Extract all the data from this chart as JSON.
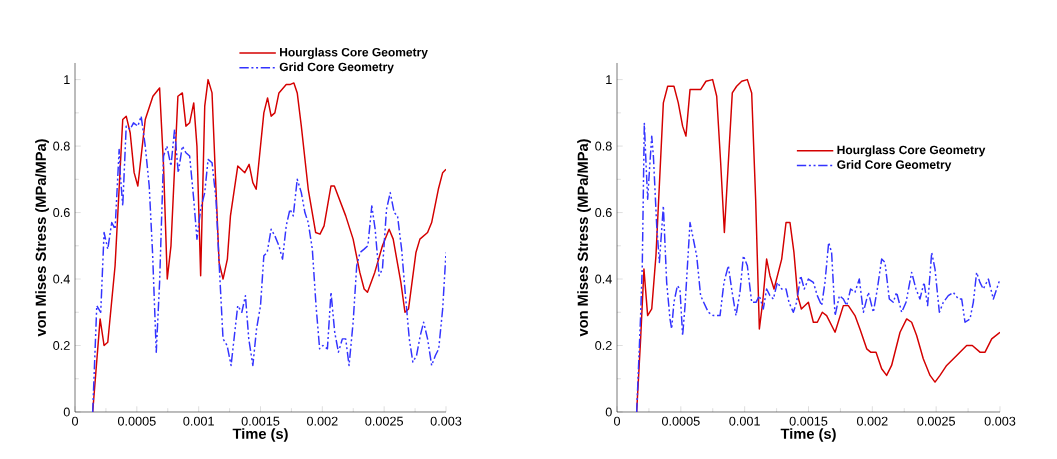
{
  "chart_data": [
    {
      "type": "line",
      "xlabel": "Time (s)",
      "ylabel": "von Mises Stress (MPa/MPa)",
      "xlim": [
        0,
        0.003
      ],
      "ylim": [
        0,
        1.05
      ],
      "xticks": [
        {
          "value": 0,
          "label": "0"
        },
        {
          "value": 0.0005,
          "label": "0.0005"
        },
        {
          "value": 0.001,
          "label": "0.001"
        },
        {
          "value": 0.0015,
          "label": "0.0015"
        },
        {
          "value": 0.002,
          "label": "0.002"
        },
        {
          "value": 0.0025,
          "label": "0.0025"
        },
        {
          "value": 0.003,
          "label": "0.003"
        }
      ],
      "yticks": [
        0,
        0.2,
        0.4,
        0.6,
        0.8,
        1
      ],
      "legend": "top right",
      "grid": false,
      "marker": "none",
      "series": [
        {
          "name": "Hourglass Core Geometry",
          "color": "#d40000",
          "line_style": "solid",
          "x": [
            0.000143,
            0.000203,
            0.000235,
            0.000265,
            0.000324,
            0.000386,
            0.000414,
            0.000446,
            0.000478,
            0.000508,
            0.000568,
            0.00063,
            0.000684,
            0.000716,
            0.000746,
            0.000776,
            0.000832,
            0.000868,
            0.000897,
            0.000927,
            0.00096,
            0.000986,
            0.001016,
            0.001049,
            0.001076,
            0.001108,
            0.00114,
            0.001165,
            0.001197,
            0.001232,
            0.001257,
            0.001316,
            0.001373,
            0.001408,
            0.001438,
            0.001465,
            0.001527,
            0.001557,
            0.001586,
            0.001616,
            0.001649,
            0.001708,
            0.001738,
            0.00177,
            0.001797,
            0.00183,
            0.001886,
            0.001946,
            0.001981,
            0.002014,
            0.00207,
            0.002097,
            0.002189,
            0.002249,
            0.002303,
            0.002338,
            0.002365,
            0.002424,
            0.002486,
            0.00254,
            0.002573,
            0.002635,
            0.002668,
            0.002697,
            0.002757,
            0.002789,
            0.002851,
            0.002884,
            0.002938,
            0.002973,
            0.003
          ],
          "values": [
            0,
            0.28,
            0.2,
            0.21,
            0.44,
            0.88,
            0.89,
            0.84,
            0.72,
            0.68,
            0.88,
            0.95,
            0.975,
            0.74,
            0.4,
            0.5,
            0.95,
            0.96,
            0.86,
            0.87,
            0.93,
            0.8,
            0.41,
            0.92,
            1.0,
            0.96,
            0.67,
            0.45,
            0.4,
            0.46,
            0.59,
            0.74,
            0.72,
            0.745,
            0.69,
            0.67,
            0.9,
            0.945,
            0.89,
            0.9,
            0.96,
            0.985,
            0.985,
            0.99,
            0.96,
            0.86,
            0.67,
            0.54,
            0.535,
            0.56,
            0.68,
            0.68,
            0.59,
            0.52,
            0.42,
            0.37,
            0.36,
            0.42,
            0.5,
            0.55,
            0.52,
            0.39,
            0.3,
            0.31,
            0.48,
            0.52,
            0.54,
            0.57,
            0.67,
            0.72,
            0.73
          ]
        },
        {
          "name": "Grid Core Geometry",
          "color": "#3333ff",
          "line_style": "dashdot",
          "x": [
            0.000143,
            0.000176,
            0.000208,
            0.000235,
            0.000265,
            0.000297,
            0.000324,
            0.000357,
            0.000365,
            0.000386,
            0.000414,
            0.000446,
            0.000473,
            0.000508,
            0.000535,
            0.000568,
            0.0006,
            0.000627,
            0.000657,
            0.000684,
            0.000716,
            0.000743,
            0.000776,
            0.000805,
            0.000835,
            0.000868,
            0.000897,
            0.000927,
            0.00096,
            0.000986,
            0.001016,
            0.001049,
            0.001076,
            0.001108,
            0.00114,
            0.001165,
            0.001197,
            0.00123,
            0.001262,
            0.001289,
            0.001316,
            0.001349,
            0.001378,
            0.001405,
            0.001438,
            0.001468,
            0.0015,
            0.001527,
            0.001554,
            0.001586,
            0.001616,
            0.001649,
            0.001678,
            0.001708,
            0.001738,
            0.001765,
            0.001797,
            0.00183,
            0.001859,
            0.001886,
            0.001919,
            0.001949,
            0.001978,
            0.002005,
            0.002041,
            0.00207,
            0.0021,
            0.00213,
            0.002162,
            0.002189,
            0.002216,
            0.002249,
            0.002278,
            0.002305,
            0.002338,
            0.002368,
            0.0024,
            0.002427,
            0.002459,
            0.002486,
            0.002519,
            0.002549,
            0.002581,
            0.002608,
            0.002641,
            0.00267,
            0.002703,
            0.002732,
            0.002762,
            0.002792,
            0.002819,
            0.002851,
            0.002884,
            0.002914,
            0.002941,
            0.002973,
            0.003
          ],
          "values": [
            0,
            0.32,
            0.3,
            0.54,
            0.49,
            0.57,
            0.55,
            0.79,
            0.72,
            0.62,
            0.86,
            0.85,
            0.87,
            0.86,
            0.89,
            0.8,
            0.68,
            0.48,
            0.18,
            0.39,
            0.77,
            0.8,
            0.74,
            0.85,
            0.72,
            0.8,
            0.78,
            0.77,
            0.64,
            0.52,
            0.61,
            0.66,
            0.76,
            0.75,
            0.64,
            0.45,
            0.22,
            0.2,
            0.14,
            0.23,
            0.32,
            0.3,
            0.35,
            0.22,
            0.14,
            0.25,
            0.32,
            0.47,
            0.48,
            0.55,
            0.53,
            0.5,
            0.46,
            0.56,
            0.61,
            0.59,
            0.7,
            0.66,
            0.6,
            0.57,
            0.49,
            0.32,
            0.19,
            0.2,
            0.19,
            0.36,
            0.24,
            0.18,
            0.22,
            0.22,
            0.14,
            0.27,
            0.44,
            0.48,
            0.49,
            0.5,
            0.62,
            0.55,
            0.41,
            0.43,
            0.61,
            0.66,
            0.6,
            0.59,
            0.49,
            0.36,
            0.22,
            0.15,
            0.17,
            0.23,
            0.27,
            0.22,
            0.14,
            0.17,
            0.19,
            0.31,
            0.48
          ]
        }
      ]
    },
    {
      "type": "line",
      "xlabel": "Time (s)",
      "ylabel": "von Mises Stress (MPa/MPa)",
      "xlim": [
        0,
        0.003
      ],
      "ylim": [
        0,
        1.05
      ],
      "xticks": [
        {
          "value": 0,
          "label": "0"
        },
        {
          "value": 0.0005,
          "label": "0.0005"
        },
        {
          "value": 0.001,
          "label": "0.001"
        },
        {
          "value": 0.0015,
          "label": "0.0015"
        },
        {
          "value": 0.002,
          "label": "0.002"
        },
        {
          "value": 0.0025,
          "label": "0.0025"
        },
        {
          "value": 0.003,
          "label": "0.003"
        }
      ],
      "yticks": [
        0,
        0.2,
        0.4,
        0.6,
        0.8,
        1
      ],
      "legend": "right",
      "grid": false,
      "marker": "none",
      "series": [
        {
          "name": "Hourglass Core Geometry",
          "color": "#d40000",
          "line_style": "solid",
          "x": [
            0.000154,
            0.000185,
            0.000211,
            0.00024,
            0.000272,
            0.000305,
            0.000363,
            0.000397,
            0.000446,
            0.00048,
            0.000514,
            0.00054,
            0.000572,
            0.000624,
            0.000655,
            0.000697,
            0.000749,
            0.000781,
            0.000812,
            0.000841,
            0.000872,
            0.000903,
            0.000937,
            0.000977,
            0.001021,
            0.001055,
            0.001086,
            0.001115,
            0.001141,
            0.001172,
            0.001198,
            0.00123,
            0.00129,
            0.001324,
            0.001355,
            0.001386,
            0.001415,
            0.001444,
            0.001499,
            0.001538,
            0.001569,
            0.001608,
            0.001642,
            0.001708,
            0.001773,
            0.001812,
            0.001864,
            0.001903,
            0.001956,
            0.001987,
            0.002029,
            0.002073,
            0.002112,
            0.002151,
            0.002217,
            0.002269,
            0.002308,
            0.002347,
            0.002399,
            0.002452,
            0.002491,
            0.00253,
            0.002582,
            0.002661,
            0.002739,
            0.002783,
            0.002843,
            0.002883,
            0.002935,
            0.003
          ],
          "values": [
            0,
            0.22,
            0.43,
            0.29,
            0.31,
            0.47,
            0.93,
            0.98,
            0.98,
            0.93,
            0.86,
            0.83,
            0.97,
            0.97,
            0.97,
            0.995,
            1.0,
            0.95,
            0.75,
            0.54,
            0.75,
            0.96,
            0.98,
            0.995,
            1.0,
            0.96,
            0.64,
            0.25,
            0.33,
            0.46,
            0.41,
            0.37,
            0.46,
            0.57,
            0.57,
            0.48,
            0.35,
            0.31,
            0.33,
            0.27,
            0.27,
            0.3,
            0.29,
            0.24,
            0.32,
            0.32,
            0.29,
            0.25,
            0.19,
            0.18,
            0.18,
            0.13,
            0.11,
            0.14,
            0.24,
            0.28,
            0.27,
            0.23,
            0.16,
            0.11,
            0.09,
            0.11,
            0.14,
            0.17,
            0.2,
            0.2,
            0.18,
            0.18,
            0.22,
            0.24
          ]
        },
        {
          "name": "Grid Core Geometry",
          "color": "#3333ff",
          "line_style": "dashdot",
          "x": [
            0.000154,
            0.000185,
            0.000198,
            0.000214,
            0.000227,
            0.00024,
            0.000253,
            0.000272,
            0.000285,
            0.000311,
            0.000332,
            0.000363,
            0.000389,
            0.000415,
            0.000428,
            0.000446,
            0.000473,
            0.000493,
            0.000514,
            0.000533,
            0.000572,
            0.000598,
            0.000624,
            0.000655,
            0.000715,
            0.000755,
            0.000807,
            0.000838,
            0.000872,
            0.000898,
            0.000932,
            0.000963,
            0.00099,
            0.001021,
            0.001055,
            0.001089,
            0.001115,
            0.001146,
            0.001172,
            0.001198,
            0.001225,
            0.001256,
            0.00129,
            0.001324,
            0.001347,
            0.001381,
            0.001407,
            0.001439,
            0.001467,
            0.001499,
            0.001538,
            0.001569,
            0.001603,
            0.001629,
            0.001658,
            0.001681,
            0.001708,
            0.001742,
            0.001773,
            0.001799,
            0.00183,
            0.001864,
            0.001898,
            0.00193,
            0.001969,
            0.002008,
            0.002039,
            0.002073,
            0.002099,
            0.002133,
            0.002164,
            0.00219,
            0.00223,
            0.002264,
            0.002308,
            0.002342,
            0.002373,
            0.002405,
            0.002433,
            0.002465,
            0.002491,
            0.002525,
            0.002556,
            0.002595,
            0.002634,
            0.002674,
            0.0027,
            0.002726,
            0.002765,
            0.002791,
            0.002817,
            0.002843,
            0.002869,
            0.002909,
            0.002948,
            0.002974,
            0.003
          ],
          "values": [
            0,
            0.29,
            0.44,
            0.87,
            0.75,
            0.64,
            0.72,
            0.83,
            0.77,
            0.56,
            0.45,
            0.62,
            0.39,
            0.28,
            0.25,
            0.33,
            0.38,
            0.37,
            0.23,
            0.32,
            0.57,
            0.52,
            0.47,
            0.35,
            0.3,
            0.29,
            0.29,
            0.39,
            0.44,
            0.37,
            0.29,
            0.36,
            0.47,
            0.44,
            0.33,
            0.33,
            0.35,
            0.31,
            0.37,
            0.35,
            0.34,
            0.39,
            0.37,
            0.37,
            0.33,
            0.3,
            0.33,
            0.41,
            0.37,
            0.4,
            0.39,
            0.35,
            0.32,
            0.39,
            0.51,
            0.48,
            0.29,
            0.35,
            0.34,
            0.32,
            0.37,
            0.36,
            0.4,
            0.3,
            0.36,
            0.3,
            0.37,
            0.46,
            0.45,
            0.34,
            0.33,
            0.36,
            0.3,
            0.33,
            0.42,
            0.37,
            0.34,
            0.39,
            0.32,
            0.48,
            0.43,
            0.3,
            0.33,
            0.35,
            0.36,
            0.34,
            0.34,
            0.27,
            0.28,
            0.33,
            0.42,
            0.39,
            0.37,
            0.4,
            0.34,
            0.37,
            0.4
          ]
        }
      ]
    }
  ]
}
